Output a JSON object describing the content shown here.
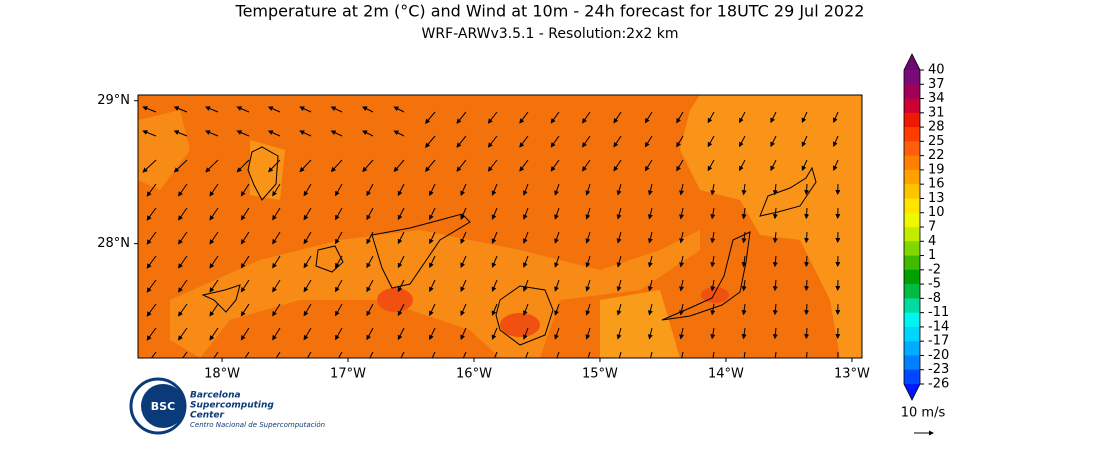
{
  "header": {
    "title": "Temperature at 2m (°C) and Wind at 10m - 24h forecast for 18UTC 29 Jul 2022",
    "subtitle": "WRF-ARWv3.5.1 - Resolution:2x2 km"
  },
  "map": {
    "xlim": [
      -18.667,
      -12.92
    ],
    "ylim": [
      27.2,
      29.04
    ],
    "xticks": [
      {
        "value": -18,
        "label": "18°W"
      },
      {
        "value": -17,
        "label": "17°W"
      },
      {
        "value": -16,
        "label": "16°W"
      },
      {
        "value": -15,
        "label": "15°W"
      },
      {
        "value": -14,
        "label": "14°W"
      },
      {
        "value": -13,
        "label": "13°W"
      }
    ],
    "yticks": [
      {
        "value": 29,
        "label": "29°N"
      },
      {
        "value": 28,
        "label": "28°N"
      }
    ]
  },
  "colorbar": {
    "ticks": [
      40,
      37,
      34,
      31,
      28,
      25,
      22,
      19,
      16,
      13,
      10,
      7,
      4,
      1,
      -2,
      -5,
      -8,
      -11,
      -14,
      -17,
      -20,
      -23,
      -26
    ],
    "colors": [
      "#7a0a78",
      "#a0005a",
      "#cc0035",
      "#f01800",
      "#ff3c00",
      "#ff5e0c",
      "#ff8000",
      "#ffa200",
      "#ffc400",
      "#ffe400",
      "#eef800",
      "#c2ec00",
      "#80d800",
      "#40bc00",
      "#00a000",
      "#00bc40",
      "#00dca0",
      "#00f4f0",
      "#00d4ff",
      "#00acff",
      "#0080ff",
      "#0048ff"
    ],
    "extend_top_color": "#6a0a6e",
    "extend_bottom_color": "#0018ff"
  },
  "wind_legend": {
    "label": "10 m/s"
  },
  "logo": {
    "abbr": "BSC",
    "line1": "Barcelona",
    "line2": "Supercomputing",
    "line3": "Center",
    "line4": "Centro Nacional de Supercomputación"
  }
}
